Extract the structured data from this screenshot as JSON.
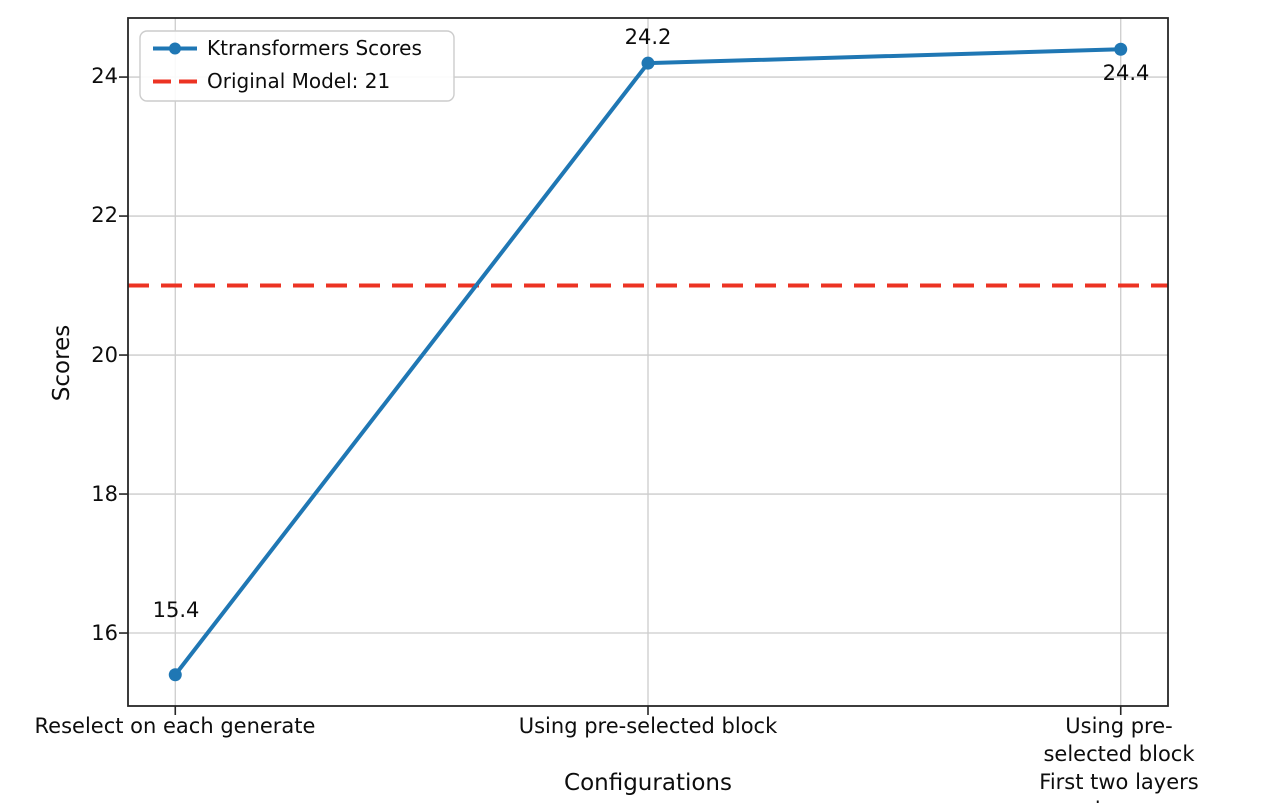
{
  "chart_data": {
    "type": "line",
    "title": "",
    "xlabel": "Configurations",
    "ylabel": "Scores",
    "categories": [
      "Reselect on each generate",
      "Using pre-selected block",
      "Using pre-selected block\nFirst two layers dense"
    ],
    "series": [
      {
        "name": "Ktransformers Scores",
        "values": [
          15.4,
          24.2,
          24.4
        ],
        "color": "#1f77b4",
        "marker": "circle",
        "point_labels": [
          "15.4",
          "24.2",
          "24.4"
        ]
      }
    ],
    "reference_line": {
      "name": "Original Model: 21",
      "value": 21,
      "color": "#ec3323",
      "style": "dashed"
    },
    "yticks": [
      "16",
      "18",
      "20",
      "22",
      "24"
    ],
    "ytick_values": [
      16,
      18,
      20,
      22,
      24
    ],
    "ylim": [
      14.95,
      24.85
    ],
    "grid": true,
    "legend_position": "upper-left",
    "colors": {
      "grid": "#cccccc",
      "spine": "#262626",
      "legend_border": "#cccccc",
      "legend_bg": "#ffffff"
    }
  }
}
